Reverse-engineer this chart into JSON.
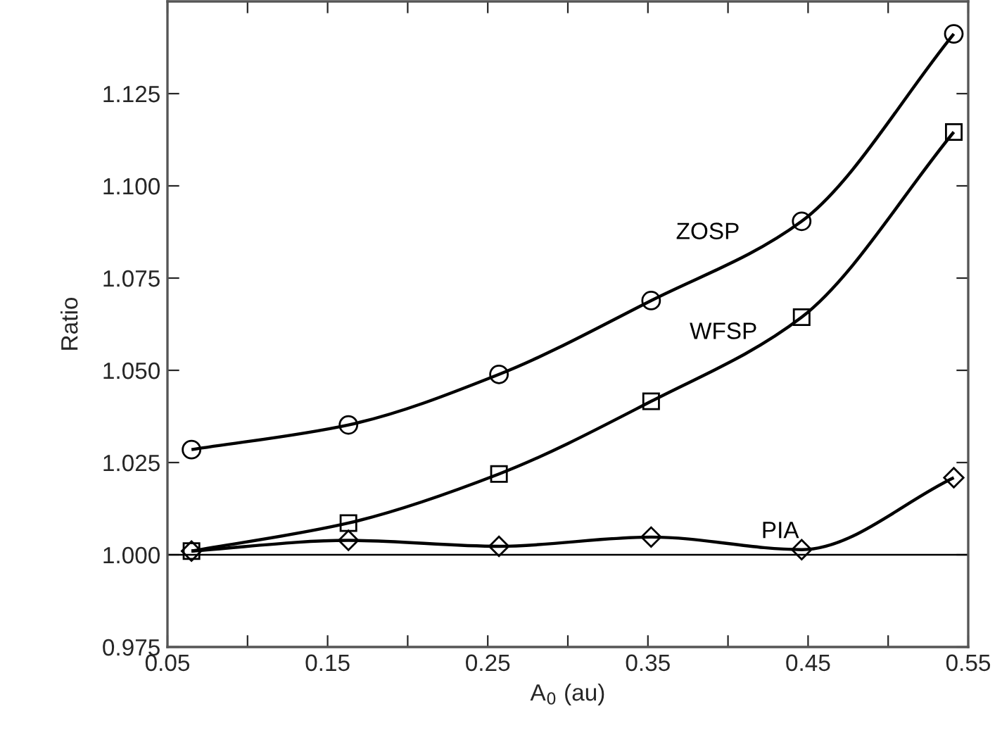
{
  "chart_data": {
    "type": "line",
    "xlabel": "A$_{0}$ (au)",
    "ylabel": "Ratio",
    "x": [
      0.065,
      0.163,
      0.257,
      0.352,
      0.446,
      0.541
    ],
    "series": [
      {
        "name": "ZOSP",
        "color": "#000000",
        "marker": "circle",
        "values": [
          1.0285,
          1.0352,
          1.0489,
          1.0689,
          1.0904,
          1.1412
        ]
      },
      {
        "name": "WFSP",
        "color": "#000000",
        "marker": "square",
        "values": [
          1.001,
          1.0086,
          1.0219,
          1.0416,
          1.0644,
          1.1146
        ]
      },
      {
        "name": "PIA",
        "color": "#000000",
        "marker": "diamond",
        "values": [
          1.001,
          1.0039,
          1.0023,
          1.0048,
          1.0014,
          1.0209
        ]
      }
    ],
    "ref_lines": [
      {
        "axis": "y",
        "value": 1.0,
        "color": "#000000"
      }
    ],
    "xlim": [
      0.05,
      0.55
    ],
    "ylim": [
      0.975,
      1.15
    ],
    "xticks": [
      0.05,
      {
        "value": 0.1,
        "label": null
      },
      0.15,
      {
        "value": 0.2,
        "label": null
      },
      0.25,
      {
        "value": 0.3,
        "label": null
      },
      0.35,
      {
        "value": 0.4,
        "label": null
      },
      0.45,
      {
        "value": 0.5,
        "label": null
      },
      0.55
    ],
    "yticks": [
      {
        "value": 0.975,
        "label": "0.975"
      },
      {
        "value": 1.0,
        "label": "1.000"
      },
      {
        "value": 1.025,
        "label": "1.025"
      },
      {
        "value": 1.05,
        "label": "1.050"
      },
      {
        "value": 1.075,
        "label": "1.075"
      },
      {
        "value": 1.1,
        "label": "1.100"
      },
      {
        "value": 1.125,
        "label": "1.125"
      }
    ],
    "grid": false,
    "legend": false,
    "line_style": "solid"
  }
}
